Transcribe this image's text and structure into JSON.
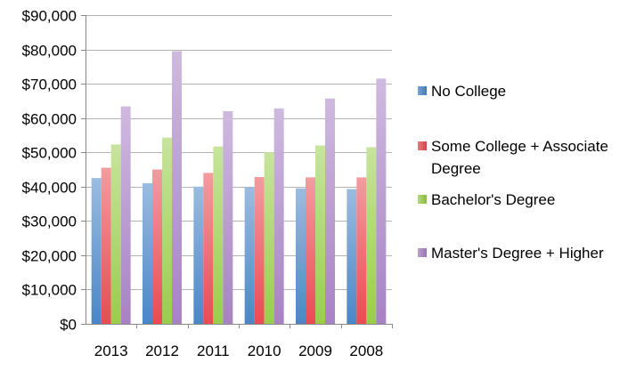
{
  "chart_data": {
    "type": "bar",
    "title": "",
    "xlabel": "",
    "ylabel": "",
    "categories": [
      "2013",
      "2012",
      "2011",
      "2010",
      "2009",
      "2008"
    ],
    "ylim": [
      0,
      90000
    ],
    "yticks": [
      0,
      10000,
      20000,
      30000,
      40000,
      50000,
      60000,
      70000,
      80000,
      90000
    ],
    "ytick_labels": [
      "$0",
      "$10,000",
      "$20,000",
      "$30,000",
      "$40,000",
      "$50,000",
      "$60,000",
      "$70,000",
      "$80,000",
      "$90,000"
    ],
    "grid": true,
    "legend_position": "right",
    "series": [
      {
        "name": "No College",
        "color": "#4a86c6",
        "values": [
          42500,
          41000,
          40000,
          39800,
          39500,
          39300
        ]
      },
      {
        "name": "Some College + Associate Degree",
        "color": "#e94b52",
        "values": [
          45500,
          45000,
          44000,
          42800,
          42700,
          42700
        ]
      },
      {
        "name": "Bachelor's Degree",
        "color": "#9acd4c",
        "values": [
          52300,
          54300,
          51700,
          50000,
          52000,
          51500
        ]
      },
      {
        "name": "Master's Degree + Higher",
        "color": "#a782c4",
        "values": [
          63400,
          79500,
          62000,
          62800,
          65700,
          71500
        ]
      }
    ]
  }
}
